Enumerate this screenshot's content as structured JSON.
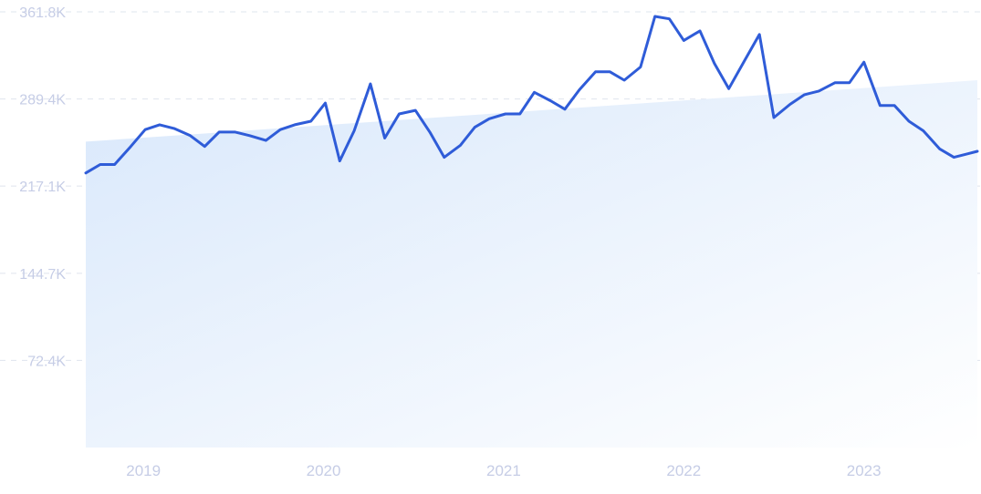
{
  "chart_data": {
    "type": "line",
    "title": "",
    "xlabel": "",
    "ylabel": "",
    "ylim": [
      0,
      361.8
    ],
    "y_ticks": [
      {
        "value": 361.8,
        "label": "361.8K"
      },
      {
        "value": 289.4,
        "label": "289.4K"
      },
      {
        "value": 217.1,
        "label": "217.1K"
      },
      {
        "value": 144.7,
        "label": "144.7K"
      },
      {
        "value": 72.4,
        "label": "72.4K"
      }
    ],
    "x_ticks": [
      {
        "value": 2019.0,
        "label": "2019"
      },
      {
        "value": 2020.0,
        "label": "2020"
      },
      {
        "value": 2021.0,
        "label": "2021"
      },
      {
        "value": 2022.0,
        "label": "2022"
      },
      {
        "value": 2023.0,
        "label": "2023"
      }
    ],
    "xlim": [
      2018.68,
      2023.63
    ],
    "grid": true,
    "colors": {
      "line": "#2f5cd8",
      "grid": "#dfe4ee",
      "tick_label": "#c6cde6",
      "trend_fill_start": "#d9e8fb",
      "trend_fill_end": "#ffffff"
    },
    "trend": {
      "start": 254,
      "end": 305
    },
    "series": [
      {
        "x": [
          2018.68,
          2018.76,
          2018.84,
          2018.93,
          2019.01,
          2019.09,
          2019.17,
          2019.26,
          2019.34,
          2019.42,
          2019.51,
          2019.59,
          2019.68,
          2019.76,
          2019.84,
          2019.93,
          2020.01,
          2020.09,
          2020.17,
          2020.26,
          2020.34,
          2020.42,
          2020.51,
          2020.59,
          2020.67,
          2020.76,
          2020.84,
          2020.92,
          2021.01,
          2021.09,
          2021.17,
          2021.26,
          2021.34,
          2021.42,
          2021.51,
          2021.59,
          2021.67,
          2021.76,
          2021.84,
          2021.92,
          2022.0,
          2022.09,
          2022.17,
          2022.25,
          2022.34,
          2022.42,
          2022.5,
          2022.59,
          2022.67,
          2022.75,
          2022.84,
          2022.92,
          2023.0,
          2023.09,
          2023.17,
          2023.25,
          2023.33,
          2023.42,
          2023.5,
          2023.58,
          2023.63
        ],
        "y": [
          228,
          235,
          235,
          250,
          264,
          268,
          265,
          259,
          250,
          262,
          262,
          259,
          255,
          264,
          268,
          271,
          286,
          238,
          263,
          302,
          257,
          277,
          280,
          262,
          241,
          251,
          266,
          273,
          277,
          277,
          295,
          288,
          281,
          297,
          312,
          312,
          305,
          316,
          358,
          356,
          338,
          346,
          319,
          298,
          322,
          343,
          274,
          285,
          293,
          296,
          303,
          303,
          320,
          284,
          284,
          271,
          263,
          248,
          241,
          244,
          246
        ]
      }
    ]
  }
}
